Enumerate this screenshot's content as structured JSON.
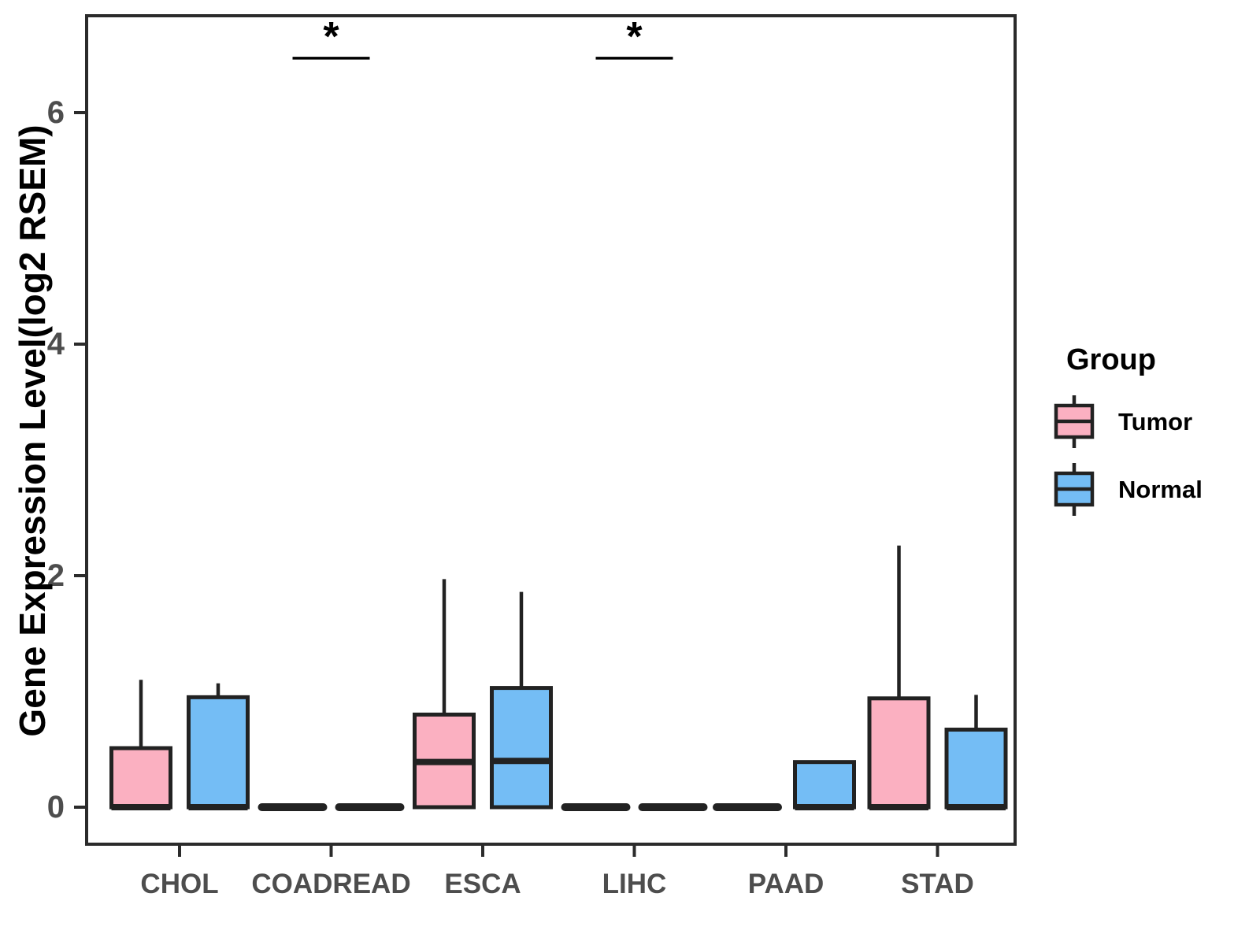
{
  "figure": {
    "background": "#ffffff"
  },
  "colors": {
    "tumor_fill": "#FBB0C1",
    "normal_fill": "#74BDF5",
    "box_stroke": "#222222",
    "panel_border": "#2b2b2b",
    "axis_text": "#4d4d4d",
    "annotation": "#000000"
  },
  "legend": {
    "title": "Group",
    "items": [
      {
        "label": "Tumor",
        "color": "#FBB0C1"
      },
      {
        "label": "Normal",
        "color": "#74BDF5"
      }
    ]
  },
  "chart_data": {
    "type": "boxplot",
    "title": "",
    "xlabel": "",
    "ylabel": "Gene Expression Level(log2 RSEM)",
    "ylim": [
      -0.32,
      6.84
    ],
    "yticks": [
      0,
      2,
      4,
      6
    ],
    "grid": false,
    "legend_position": "right",
    "categories": [
      "CHOL",
      "COADREAD",
      "ESCA",
      "LIHC",
      "PAAD",
      "STAD"
    ],
    "series": [
      {
        "name": "Tumor",
        "color": "#FBB0C1",
        "boxes": [
          {
            "category": "CHOL",
            "whisker_low": 0,
            "q1": 0,
            "median": 0,
            "q3": 0.51,
            "whisker_high": 1.1
          },
          {
            "category": "COADREAD",
            "whisker_low": 0,
            "q1": 0,
            "median": 0,
            "q3": 0,
            "whisker_high": 0
          },
          {
            "category": "ESCA",
            "whisker_low": 0,
            "q1": 0,
            "median": 0.39,
            "q3": 0.8,
            "whisker_high": 1.97
          },
          {
            "category": "LIHC",
            "whisker_low": 0,
            "q1": 0,
            "median": 0,
            "q3": 0,
            "whisker_high": 0
          },
          {
            "category": "PAAD",
            "whisker_low": 0,
            "q1": 0,
            "median": 0,
            "q3": 0,
            "whisker_high": 0
          },
          {
            "category": "STAD",
            "whisker_low": 0,
            "q1": 0,
            "median": 0,
            "q3": 0.94,
            "whisker_high": 2.26
          }
        ]
      },
      {
        "name": "Normal",
        "color": "#74BDF5",
        "boxes": [
          {
            "category": "CHOL",
            "whisker_low": 0,
            "q1": 0,
            "median": 0,
            "q3": 0.95,
            "whisker_high": 1.07
          },
          {
            "category": "COADREAD",
            "whisker_low": 0,
            "q1": 0,
            "median": 0,
            "q3": 0,
            "whisker_high": 0
          },
          {
            "category": "ESCA",
            "whisker_low": 0,
            "q1": 0,
            "median": 0.4,
            "q3": 1.03,
            "whisker_high": 1.86
          },
          {
            "category": "LIHC",
            "whisker_low": 0,
            "q1": 0,
            "median": 0,
            "q3": 0,
            "whisker_high": 0
          },
          {
            "category": "PAAD",
            "whisker_low": 0,
            "q1": 0,
            "median": 0,
            "q3": 0.39,
            "whisker_high": 0.39
          },
          {
            "category": "STAD",
            "whisker_low": 0,
            "q1": 0,
            "median": 0,
            "q3": 0.67,
            "whisker_high": 0.97
          }
        ]
      }
    ],
    "annotations": [
      {
        "category": "COADREAD",
        "text": "*",
        "y": 6.47
      },
      {
        "category": "LIHC",
        "text": "*",
        "y": 6.47
      }
    ]
  }
}
